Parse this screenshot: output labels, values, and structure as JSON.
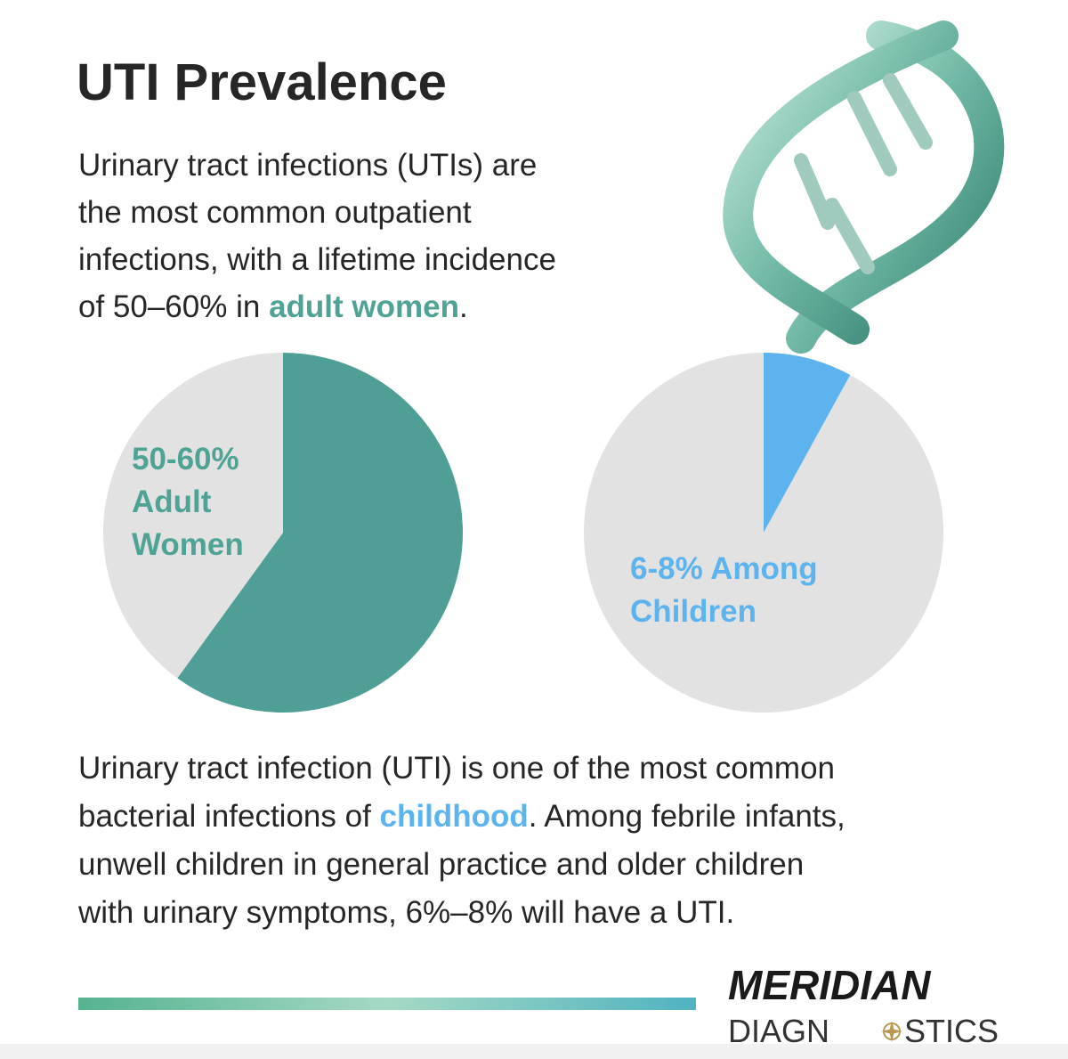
{
  "title": "UTI Prevalence",
  "intro": [
    [
      {
        "text": "Urinary tract infections (UTIs) are"
      }
    ],
    [
      {
        "text": "the most common outpatient"
      }
    ],
    [
      {
        "text": "infections, with a lifetime incidence"
      }
    ],
    [
      {
        "text": "of 50–60% in "
      },
      {
        "text": "adult women",
        "accent": "#4fa395"
      },
      {
        "text": "."
      }
    ]
  ],
  "chart_data": [
    {
      "type": "pie",
      "values": [
        60,
        40
      ],
      "colors": [
        "#4f9f96",
        "#e2e2e2"
      ],
      "annotation": [
        "50-60%",
        "Adult",
        "Women"
      ],
      "annotation_color": "#4fa395"
    },
    {
      "type": "pie",
      "values": [
        8,
        92
      ],
      "colors": [
        "#5cb3ee",
        "#e2e2e2"
      ],
      "annotation": [
        "6-8% Among",
        "Children"
      ],
      "annotation_color": "#5cb3ee"
    }
  ],
  "footer": [
    [
      {
        "text": "Urinary tract infection (UTI) is one of the most common"
      }
    ],
    [
      {
        "text": "bacterial infections of "
      },
      {
        "text": "childhood",
        "accent": "#5cb3ee"
      },
      {
        "text": ". Among febrile infants,"
      }
    ],
    [
      {
        "text": "unwell children in general practice and older children"
      }
    ],
    [
      {
        "text": "with urinary symptoms, 6%–8% will have a UTI."
      }
    ]
  ],
  "logo": {
    "line1": "MERIDIAN",
    "line2a": "DIAGN",
    "line2b": "STICS"
  }
}
